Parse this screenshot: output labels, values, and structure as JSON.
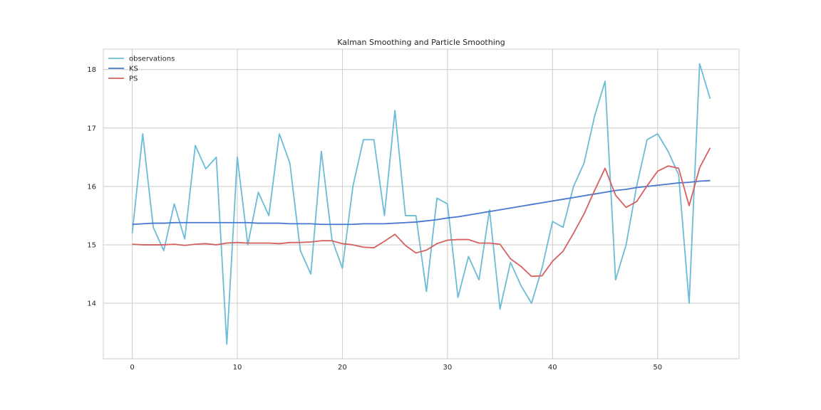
{
  "chart_data": {
    "type": "line",
    "title": "Kalman Smoothing and Particle Smoothing",
    "xlabel": "",
    "ylabel": "",
    "xlim": [
      -2.75,
      57.75
    ],
    "ylim": [
      13.05,
      18.35
    ],
    "x_ticks": [
      0,
      10,
      20,
      30,
      40,
      50
    ],
    "y_ticks": [
      14,
      15,
      16,
      17,
      18
    ],
    "grid": true,
    "legend_position": "top-left",
    "x": [
      0,
      1,
      2,
      3,
      4,
      5,
      6,
      7,
      8,
      9,
      10,
      11,
      12,
      13,
      14,
      15,
      16,
      17,
      18,
      19,
      20,
      21,
      22,
      23,
      24,
      25,
      26,
      27,
      28,
      29,
      30,
      31,
      32,
      33,
      34,
      35,
      36,
      37,
      38,
      39,
      40,
      41,
      42,
      43,
      44,
      45,
      46,
      47,
      48,
      49,
      50,
      51,
      52,
      53,
      54,
      55
    ],
    "series": [
      {
        "name": "observations",
        "color": "#6bbcd6",
        "values": [
          15.2,
          16.9,
          15.3,
          14.9,
          15.7,
          15.1,
          16.7,
          16.3,
          16.5,
          13.3,
          16.5,
          15.0,
          15.9,
          15.5,
          16.9,
          16.4,
          14.9,
          14.5,
          16.6,
          15.1,
          14.6,
          16.0,
          16.8,
          16.8,
          15.5,
          17.3,
          15.5,
          15.5,
          14.2,
          15.8,
          15.7,
          14.1,
          14.8,
          14.4,
          15.6,
          13.9,
          14.7,
          14.3,
          14.0,
          14.6,
          15.4,
          15.3,
          16.0,
          16.4,
          17.2,
          17.8,
          14.4,
          15.0,
          16.0,
          16.8,
          16.9,
          16.6,
          16.2,
          14.0,
          18.1,
          17.5
        ]
      },
      {
        "name": "KS",
        "color": "#4878cf",
        "values": [
          15.35,
          15.36,
          15.37,
          15.37,
          15.38,
          15.38,
          15.38,
          15.38,
          15.38,
          15.38,
          15.38,
          15.38,
          15.37,
          15.37,
          15.37,
          15.36,
          15.36,
          15.36,
          15.35,
          15.35,
          15.35,
          15.35,
          15.36,
          15.36,
          15.36,
          15.37,
          15.38,
          15.39,
          15.41,
          15.43,
          15.46,
          15.48,
          15.51,
          15.54,
          15.57,
          15.6,
          15.63,
          15.66,
          15.69,
          15.72,
          15.75,
          15.78,
          15.81,
          15.84,
          15.87,
          15.9,
          15.93,
          15.95,
          15.98,
          16.0,
          16.02,
          16.04,
          16.06,
          16.07,
          16.09,
          16.1
        ]
      },
      {
        "name": "PS",
        "color": "#d65f5f",
        "values": [
          15.01,
          15.0,
          15.0,
          15.0,
          15.01,
          14.99,
          15.01,
          15.02,
          15.0,
          15.03,
          15.04,
          15.03,
          15.03,
          15.03,
          15.02,
          15.04,
          15.04,
          15.05,
          15.07,
          15.07,
          15.02,
          15.0,
          14.96,
          14.95,
          15.06,
          15.18,
          14.99,
          14.86,
          14.91,
          15.02,
          15.08,
          15.09,
          15.09,
          15.03,
          15.03,
          15.01,
          14.76,
          14.63,
          14.46,
          14.47,
          14.72,
          14.89,
          15.2,
          15.53,
          15.93,
          16.31,
          15.85,
          15.64,
          15.74,
          16.01,
          16.26,
          16.35,
          16.31,
          15.67,
          16.32,
          16.66
        ]
      }
    ]
  }
}
